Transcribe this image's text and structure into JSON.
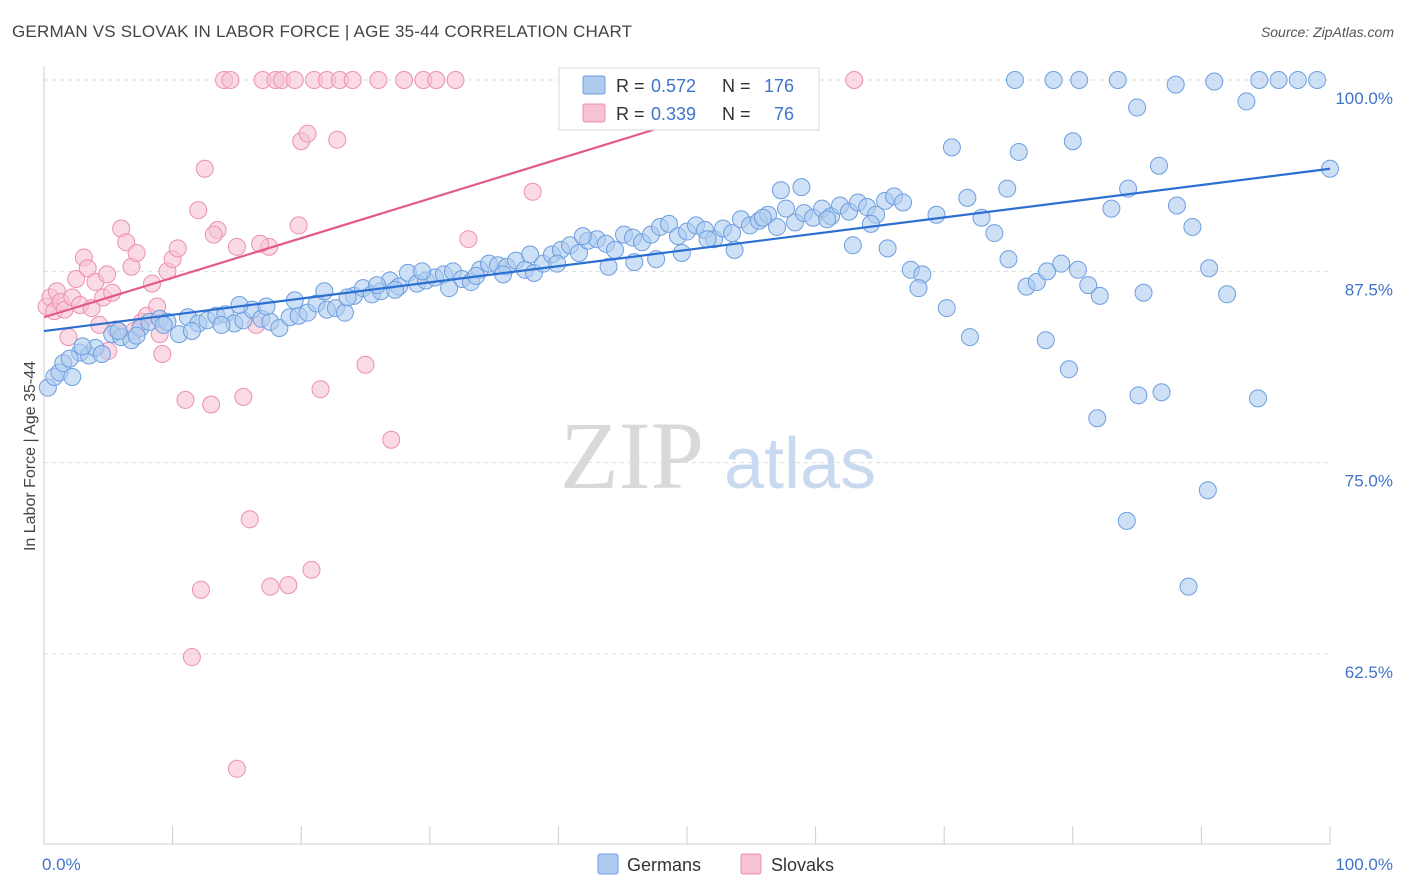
{
  "title": "GERMAN VS SLOVAK IN LABOR FORCE | AGE 35-44 CORRELATION CHART",
  "source": "Source: ZipAtlas.com",
  "watermark": {
    "zip": "ZIP",
    "atlas": "atlas"
  },
  "colors": {
    "german_fill": "#aecbef",
    "german_stroke": "#6d9ee0",
    "german_line": "#2b6fd1",
    "slovak_fill": "#f7c3d3",
    "slovak_stroke": "#ec90ae",
    "slovak_line": "#e35a86",
    "tick_label": "#3f74c9",
    "grid": "#dddddd"
  },
  "legend": {
    "rows": [
      {
        "series": "Germans",
        "r_label": "R =",
        "r_value": "0.572",
        "n_label": "N =",
        "n_value": "176"
      },
      {
        "series": "Slovaks",
        "r_label": "R =",
        "r_value": "0.339",
        "n_label": "N =",
        "n_value": "76"
      }
    ]
  },
  "chart_data": {
    "type": "scatter",
    "ylabel": "In Labor Force | Age 35-44",
    "x_axis": {
      "min": 0,
      "max": 100,
      "tick_labels": [
        "0.0%",
        "100.0%"
      ]
    },
    "y_axis": {
      "min": 55,
      "max": 100,
      "ticks": [
        62.5,
        75.0,
        87.5,
        100.0
      ],
      "tick_labels": [
        "62.5%",
        "75.0%",
        "87.5%",
        "100.0%"
      ]
    },
    "grid": true,
    "legend_position": "bottom",
    "series": [
      {
        "name": "Germans",
        "trendline": {
          "x": [
            0,
            100
          ],
          "y": [
            83.6,
            94.2
          ]
        },
        "points": [
          [
            0.3,
            79.9
          ],
          [
            0.8,
            80.6
          ],
          [
            1.2,
            80.9
          ],
          [
            1.5,
            81.5
          ],
          [
            2.2,
            80.6
          ],
          [
            2.8,
            82.2
          ],
          [
            3.5,
            82.0
          ],
          [
            4.0,
            82.5
          ],
          [
            4.5,
            82.1
          ],
          [
            5.3,
            83.4
          ],
          [
            6.0,
            83.2
          ],
          [
            6.8,
            83.0
          ],
          [
            7.5,
            83.8
          ],
          [
            8.2,
            84.2
          ],
          [
            9.0,
            84.4
          ],
          [
            9.6,
            84.2
          ],
          [
            10.5,
            83.4
          ],
          [
            11.2,
            84.5
          ],
          [
            12.0,
            84.1
          ],
          [
            12.7,
            84.3
          ],
          [
            13.4,
            84.6
          ],
          [
            14.1,
            84.7
          ],
          [
            14.8,
            84.1
          ],
          [
            15.5,
            84.3
          ],
          [
            16.2,
            85.0
          ],
          [
            16.9,
            84.4
          ],
          [
            17.6,
            84.2
          ],
          [
            18.3,
            83.8
          ],
          [
            19.1,
            84.5
          ],
          [
            19.8,
            84.6
          ],
          [
            20.5,
            84.8
          ],
          [
            21.2,
            85.4
          ],
          [
            22.0,
            85.0
          ],
          [
            22.7,
            85.1
          ],
          [
            23.4,
            84.8
          ],
          [
            24.1,
            85.9
          ],
          [
            24.8,
            86.4
          ],
          [
            25.5,
            86.0
          ],
          [
            26.2,
            86.2
          ],
          [
            26.9,
            86.9
          ],
          [
            27.6,
            86.5
          ],
          [
            28.3,
            87.4
          ],
          [
            29.0,
            86.7
          ],
          [
            29.7,
            86.9
          ],
          [
            30.4,
            87.1
          ],
          [
            31.1,
            87.3
          ],
          [
            31.8,
            87.5
          ],
          [
            32.5,
            87.0
          ],
          [
            33.2,
            86.8
          ],
          [
            33.9,
            87.6
          ],
          [
            34.6,
            88.0
          ],
          [
            35.3,
            87.9
          ],
          [
            36.0,
            87.8
          ],
          [
            36.7,
            88.2
          ],
          [
            37.4,
            87.6
          ],
          [
            38.1,
            87.4
          ],
          [
            38.8,
            88.0
          ],
          [
            39.5,
            88.6
          ],
          [
            40.2,
            88.9
          ],
          [
            40.9,
            89.2
          ],
          [
            41.6,
            88.7
          ],
          [
            42.3,
            89.5
          ],
          [
            43.0,
            89.6
          ],
          [
            43.7,
            89.3
          ],
          [
            44.4,
            88.9
          ],
          [
            45.1,
            89.9
          ],
          [
            45.8,
            89.7
          ],
          [
            46.5,
            89.4
          ],
          [
            47.2,
            89.9
          ],
          [
            47.9,
            90.4
          ],
          [
            48.6,
            90.6
          ],
          [
            49.3,
            89.8
          ],
          [
            50.0,
            90.1
          ],
          [
            50.7,
            90.5
          ],
          [
            51.4,
            90.2
          ],
          [
            52.1,
            89.6
          ],
          [
            52.8,
            90.3
          ],
          [
            53.5,
            90.0
          ],
          [
            54.2,
            90.9
          ],
          [
            54.9,
            90.5
          ],
          [
            55.6,
            90.8
          ],
          [
            56.3,
            91.2
          ],
          [
            57.0,
            90.4
          ],
          [
            57.7,
            91.6
          ],
          [
            58.4,
            90.7
          ],
          [
            59.1,
            91.3
          ],
          [
            59.8,
            91.0
          ],
          [
            60.5,
            91.6
          ],
          [
            61.2,
            91.1
          ],
          [
            61.9,
            91.8
          ],
          [
            62.6,
            91.4
          ],
          [
            63.3,
            92.0
          ],
          [
            64.0,
            91.7
          ],
          [
            64.7,
            91.2
          ],
          [
            65.4,
            92.1
          ],
          [
            66.1,
            92.4
          ],
          [
            66.8,
            92.0
          ],
          [
            2.0,
            81.8
          ],
          [
            3.0,
            82.6
          ],
          [
            5.8,
            83.6
          ],
          [
            7.2,
            83.3
          ],
          [
            9.3,
            84.0
          ],
          [
            11.5,
            83.6
          ],
          [
            13.8,
            84.0
          ],
          [
            15.2,
            85.3
          ],
          [
            17.3,
            85.2
          ],
          [
            19.5,
            85.6
          ],
          [
            21.8,
            86.2
          ],
          [
            23.6,
            85.8
          ],
          [
            25.9,
            86.6
          ],
          [
            27.3,
            86.3
          ],
          [
            29.4,
            87.5
          ],
          [
            31.5,
            86.4
          ],
          [
            33.6,
            87.2
          ],
          [
            35.7,
            87.3
          ],
          [
            37.8,
            88.6
          ],
          [
            39.9,
            88.0
          ],
          [
            41.9,
            89.8
          ],
          [
            43.9,
            87.8
          ],
          [
            45.9,
            88.1
          ],
          [
            47.6,
            88.3
          ],
          [
            49.6,
            88.7
          ],
          [
            51.6,
            89.6
          ],
          [
            53.7,
            88.9
          ],
          [
            55.9,
            91.0
          ],
          [
            57.3,
            92.8
          ],
          [
            58.9,
            93.0
          ],
          [
            60.9,
            90.9
          ],
          [
            62.9,
            89.2
          ],
          [
            64.3,
            90.6
          ],
          [
            65.6,
            89.0
          ],
          [
            67.4,
            87.6
          ],
          [
            68.3,
            87.3
          ],
          [
            69.4,
            91.2
          ],
          [
            70.6,
            95.6
          ],
          [
            71.8,
            92.3
          ],
          [
            72.9,
            91.0
          ],
          [
            73.9,
            90.0
          ],
          [
            74.9,
            92.9
          ],
          [
            75.8,
            95.3
          ],
          [
            76.4,
            86.5
          ],
          [
            77.2,
            86.8
          ],
          [
            78.0,
            87.5
          ],
          [
            79.1,
            88.0
          ],
          [
            80.4,
            87.6
          ],
          [
            81.2,
            86.6
          ],
          [
            82.1,
            85.9
          ],
          [
            83.0,
            91.6
          ],
          [
            84.3,
            92.9
          ],
          [
            85.5,
            86.1
          ],
          [
            86.7,
            94.4
          ],
          [
            88.1,
            91.8
          ],
          [
            89.3,
            90.4
          ],
          [
            90.6,
            87.7
          ],
          [
            92.0,
            86.0
          ],
          [
            68.0,
            86.4
          ],
          [
            70.2,
            85.1
          ],
          [
            72.0,
            83.2
          ],
          [
            75.0,
            88.3
          ],
          [
            77.9,
            83.0
          ],
          [
            79.7,
            81.1
          ],
          [
            81.9,
            77.9
          ],
          [
            85.1,
            79.4
          ],
          [
            86.9,
            79.6
          ],
          [
            90.5,
            73.2
          ],
          [
            94.4,
            79.2
          ],
          [
            100.0,
            94.2
          ],
          [
            75.5,
            100.0
          ],
          [
            78.5,
            100.0
          ],
          [
            80.5,
            100.0
          ],
          [
            83.5,
            100.0
          ],
          [
            85.0,
            98.2
          ],
          [
            88.0,
            99.7
          ],
          [
            91.0,
            99.9
          ],
          [
            93.5,
            98.6
          ],
          [
            94.5,
            100.0
          ],
          [
            96.0,
            100.0
          ],
          [
            97.5,
            100.0
          ],
          [
            99.0,
            100.0
          ],
          [
            89.0,
            66.9
          ],
          [
            84.2,
            71.2
          ],
          [
            80.0,
            96.0
          ]
        ]
      },
      {
        "name": "Slovaks",
        "trendline": {
          "x": [
            0,
            60
          ],
          "y": [
            84.5,
            100.0
          ]
        },
        "points": [
          [
            0.2,
            85.2
          ],
          [
            0.5,
            85.8
          ],
          [
            0.8,
            84.9
          ],
          [
            1.0,
            86.2
          ],
          [
            1.3,
            85.5
          ],
          [
            1.6,
            85.0
          ],
          [
            1.9,
            83.2
          ],
          [
            2.2,
            85.8
          ],
          [
            2.5,
            87.0
          ],
          [
            2.8,
            85.3
          ],
          [
            3.1,
            88.4
          ],
          [
            3.4,
            87.7
          ],
          [
            3.7,
            85.1
          ],
          [
            4.0,
            86.8
          ],
          [
            4.3,
            84.0
          ],
          [
            4.6,
            85.8
          ],
          [
            4.9,
            87.3
          ],
          [
            5.3,
            86.1
          ],
          [
            5.6,
            83.7
          ],
          [
            6.0,
            90.3
          ],
          [
            6.4,
            89.4
          ],
          [
            6.8,
            87.8
          ],
          [
            7.2,
            88.7
          ],
          [
            7.6,
            84.2
          ],
          [
            8.0,
            84.6
          ],
          [
            8.4,
            86.7
          ],
          [
            8.8,
            85.2
          ],
          [
            9.2,
            82.1
          ],
          [
            9.6,
            87.5
          ],
          [
            10.0,
            88.3
          ],
          [
            11.0,
            79.1
          ],
          [
            12.0,
            91.5
          ],
          [
            12.5,
            94.2
          ],
          [
            13.0,
            78.8
          ],
          [
            13.5,
            90.2
          ],
          [
            14.0,
            100.0
          ],
          [
            14.5,
            100.0
          ],
          [
            15.0,
            89.1
          ],
          [
            15.5,
            79.3
          ],
          [
            16.0,
            71.3
          ],
          [
            16.5,
            84.0
          ],
          [
            17.0,
            100.0
          ],
          [
            17.5,
            89.1
          ],
          [
            18.0,
            100.0
          ],
          [
            18.5,
            100.0
          ],
          [
            19.0,
            67.0
          ],
          [
            19.5,
            100.0
          ],
          [
            20.0,
            96.0
          ],
          [
            20.5,
            96.5
          ],
          [
            21.0,
            100.0
          ],
          [
            21.5,
            79.8
          ],
          [
            22.0,
            100.0
          ],
          [
            23.0,
            100.0
          ],
          [
            24.0,
            100.0
          ],
          [
            25.0,
            81.4
          ],
          [
            26.0,
            100.0
          ],
          [
            27.0,
            76.5
          ],
          [
            28.0,
            100.0
          ],
          [
            29.5,
            100.0
          ],
          [
            30.5,
            100.0
          ],
          [
            32.0,
            100.0
          ],
          [
            33.0,
            89.6
          ],
          [
            11.5,
            62.3
          ],
          [
            12.2,
            66.7
          ],
          [
            15.0,
            55.0
          ],
          [
            17.6,
            66.9
          ],
          [
            20.8,
            68.0
          ],
          [
            5.0,
            82.3
          ],
          [
            7.0,
            83.6
          ],
          [
            9.0,
            83.4
          ],
          [
            10.4,
            89.0
          ],
          [
            13.2,
            89.9
          ],
          [
            16.8,
            89.3
          ],
          [
            19.8,
            90.5
          ],
          [
            22.8,
            96.1
          ],
          [
            38.0,
            92.7
          ],
          [
            45.0,
            100.0
          ],
          [
            63.0,
            100.0
          ]
        ]
      }
    ]
  }
}
